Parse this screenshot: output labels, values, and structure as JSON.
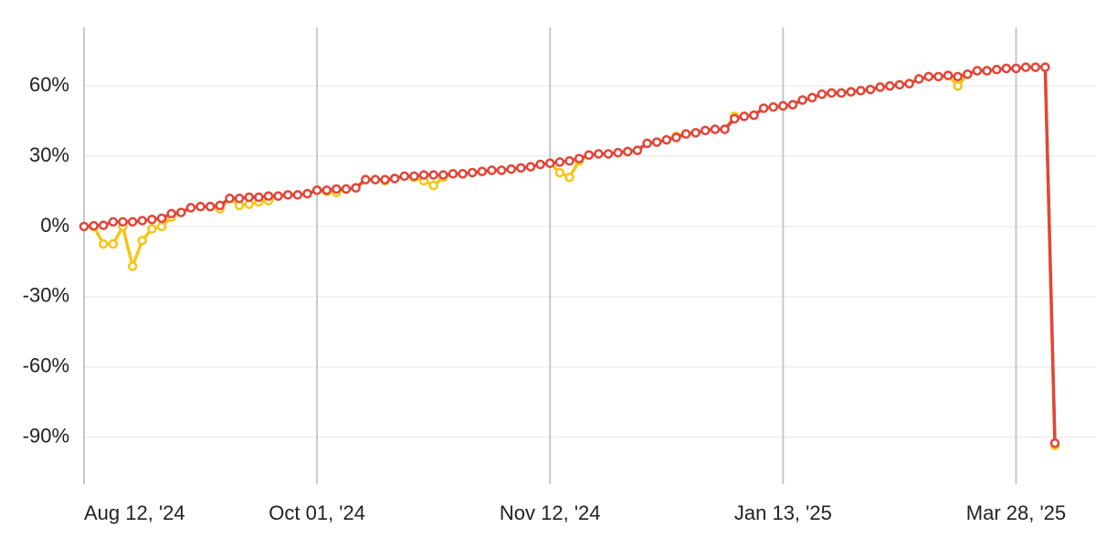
{
  "chart_data": {
    "type": "line",
    "categories": [
      "Aug 12, '24",
      null,
      null,
      null,
      null,
      null,
      null,
      null,
      null,
      null,
      null,
      null,
      null,
      null,
      null,
      null,
      null,
      null,
      null,
      null,
      null,
      null,
      null,
      null,
      "Oct 01, '24",
      null,
      null,
      null,
      null,
      null,
      null,
      null,
      null,
      null,
      null,
      null,
      null,
      null,
      null,
      null,
      null,
      null,
      null,
      null,
      null,
      null,
      null,
      null,
      "Nov 12, '24",
      null,
      null,
      null,
      null,
      null,
      null,
      null,
      null,
      null,
      null,
      null,
      null,
      null,
      null,
      null,
      null,
      null,
      null,
      null,
      null,
      null,
      null,
      null,
      "Jan 13, '25",
      null,
      null,
      null,
      null,
      null,
      null,
      null,
      null,
      null,
      null,
      null,
      null,
      null,
      null,
      null,
      null,
      null,
      null,
      null,
      null,
      null,
      null,
      null,
      "Mar 28, '25",
      null,
      null,
      null,
      null
    ],
    "series": [
      {
        "color": "#f5c518",
        "values": [
          0,
          0,
          -7.5,
          -7.5,
          0,
          -17,
          -6,
          -1,
          0,
          4,
          6,
          8,
          8.5,
          8.5,
          7.5,
          12,
          9,
          9.5,
          10.5,
          11,
          13,
          13.5,
          13.5,
          14,
          15.5,
          15,
          14.5,
          16,
          16.5,
          20,
          20,
          19.5,
          20.5,
          21.5,
          21,
          19.5,
          17.5,
          21,
          22.5,
          22.5,
          23,
          23.5,
          24,
          24,
          24.5,
          25,
          25.5,
          26.5,
          27,
          23,
          21,
          28,
          30.5,
          31,
          31,
          31.5,
          32,
          32.5,
          35.5,
          36,
          37,
          38.5,
          39.5,
          40,
          41,
          41.5,
          41.5,
          47,
          47,
          47.5,
          50.5,
          51,
          51.5,
          52,
          54,
          55,
          56.5,
          57,
          57,
          57.5,
          58,
          58.5,
          59.5,
          60,
          60.5,
          61,
          63,
          64,
          64,
          64.5,
          60,
          65,
          66.5,
          66.5,
          67,
          67.5,
          67.5,
          68,
          68,
          68,
          -93.5
        ]
      },
      {
        "color": "#e0463c",
        "values": [
          0,
          0.3,
          0.5,
          2,
          2,
          2,
          2.5,
          3,
          3.5,
          5.5,
          6,
          8,
          8.5,
          8.5,
          9,
          12,
          12,
          12.5,
          12.5,
          13,
          13,
          13.5,
          13.5,
          14,
          15.5,
          15.5,
          16,
          16,
          16.5,
          20,
          20,
          20,
          20.5,
          21.5,
          21.5,
          22,
          22,
          22,
          22.5,
          22.5,
          23,
          23.5,
          24,
          24,
          24.5,
          25,
          25.5,
          26.5,
          27,
          27.5,
          28,
          29,
          30.5,
          31,
          31,
          31.5,
          32,
          32.5,
          35.5,
          36,
          37,
          38,
          39.5,
          40,
          41,
          41.5,
          41.5,
          46,
          47,
          47.5,
          50.5,
          51,
          51.5,
          52,
          54,
          55,
          56.5,
          57,
          57,
          57.5,
          58,
          58.5,
          59.5,
          60,
          60.5,
          61,
          63,
          64,
          64,
          64.5,
          64,
          65,
          66.5,
          66.5,
          67,
          67.5,
          67.5,
          68,
          68,
          68,
          -92.5
        ]
      }
    ],
    "ylim": [
      -110,
      85
    ],
    "yticks": [
      {
        "value": -90,
        "label": "-90%"
      },
      {
        "value": -60,
        "label": "-60%"
      },
      {
        "value": -30,
        "label": "-30%"
      },
      {
        "value": 0,
        "label": "0%"
      },
      {
        "value": 30,
        "label": "30%"
      },
      {
        "value": 60,
        "label": "60%"
      }
    ],
    "grid": true
  }
}
